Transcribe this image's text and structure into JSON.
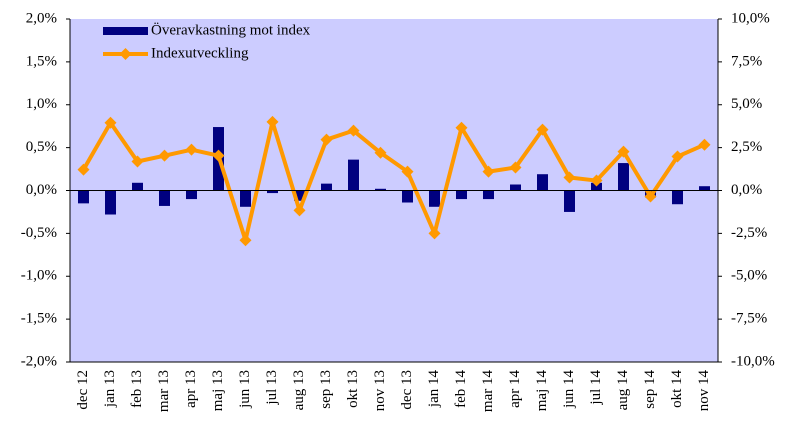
{
  "chart_data": {
    "type": "bar-line",
    "categories": [
      "dec 12",
      "jan 13",
      "feb 13",
      "mar 13",
      "apr 13",
      "maj 13",
      "jun 13",
      "jul 13",
      "aug 13",
      "sep 13",
      "okt 13",
      "nov 13",
      "dec 13",
      "jan 14",
      "feb 14",
      "mar 14",
      "apr 14",
      "maj 14",
      "jun 14",
      "jul 14",
      "aug 14",
      "sep 14",
      "okt 14",
      "nov 14"
    ],
    "series": [
      {
        "name": "Överavkastning mot index",
        "type": "bar",
        "color": "#000080",
        "values": [
          -0.15,
          -0.28,
          0.09,
          -0.18,
          -0.1,
          0.74,
          -0.19,
          -0.03,
          -0.12,
          0.08,
          0.36,
          0.02,
          -0.14,
          -0.19,
          -0.1,
          -0.1,
          0.07,
          0.19,
          -0.25,
          0.09,
          0.32,
          -0.08,
          -0.16,
          0.05
        ]
      },
      {
        "name": "Indexutveckling",
        "type": "line",
        "axis": "y2",
        "color": "#FF9900",
        "values": [
          1.22,
          3.95,
          1.69,
          2.03,
          2.38,
          2.03,
          -2.9,
          4.0,
          -1.16,
          2.97,
          3.49,
          2.2,
          1.1,
          -2.5,
          3.66,
          1.1,
          1.34,
          3.55,
          0.76,
          0.58,
          2.27,
          -0.35,
          1.98,
          2.67
        ]
      }
    ],
    "ylim": [
      -2,
      2
    ],
    "yticks": [
      {
        "value": -2,
        "label": "-2,0%"
      },
      {
        "value": -1.5,
        "label": "-1,5%"
      },
      {
        "value": -1,
        "label": "-1,0%"
      },
      {
        "value": -0.5,
        "label": "-0,5%"
      },
      {
        "value": 0,
        "label": "0,0%"
      },
      {
        "value": 0.5,
        "label": "0,5%"
      },
      {
        "value": 1,
        "label": "1,0%"
      },
      {
        "value": 1.5,
        "label": "1,5%"
      },
      {
        "value": 2,
        "label": "2,0%"
      }
    ],
    "y2lim": [
      -10,
      10
    ],
    "y2ticks": [
      {
        "value": -10,
        "label": "-10,0%"
      },
      {
        "value": -7.5,
        "label": "-7,5%"
      },
      {
        "value": -5,
        "label": "-5,0%"
      },
      {
        "value": -2.5,
        "label": "-2,5%"
      },
      {
        "value": 0,
        "label": "0,0%"
      },
      {
        "value": 2.5,
        "label": "2,5%"
      },
      {
        "value": 5,
        "label": "5,0%"
      },
      {
        "value": 7.5,
        "label": "7,5%"
      },
      {
        "value": 10,
        "label": "10,0%"
      }
    ],
    "plot_background": "#CCCCFF",
    "legend": "top-left"
  }
}
